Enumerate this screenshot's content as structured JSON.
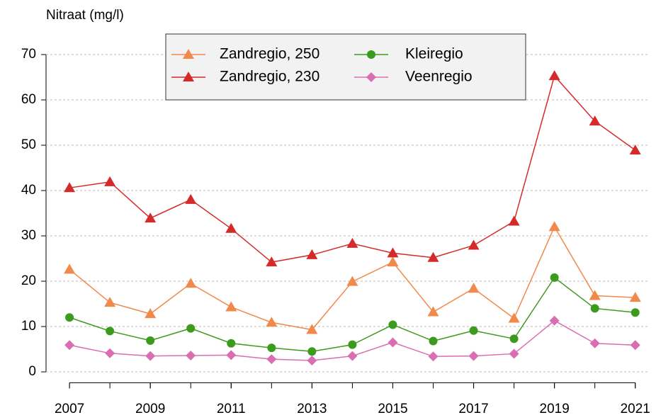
{
  "chart_data": {
    "type": "line",
    "y_label": "Nitraat (mg/l)",
    "x": [
      2007,
      2008,
      2009,
      2010,
      2011,
      2012,
      2013,
      2014,
      2015,
      2016,
      2017,
      2018,
      2019,
      2020,
      2021
    ],
    "series": [
      {
        "name": "Zandregio, 250",
        "color": "#f0894a",
        "marker": "triangle",
        "values": [
          22.6,
          15.3,
          12.8,
          19.5,
          14.3,
          10.9,
          9.3,
          19.9,
          24.2,
          13.2,
          18.4,
          11.8,
          32.0,
          16.8,
          16.4
        ]
      },
      {
        "name": "Zandregio, 230",
        "color": "#d42a2a",
        "marker": "triangle",
        "values": [
          40.6,
          41.9,
          33.9,
          38.0,
          31.6,
          24.2,
          25.8,
          28.3,
          26.2,
          25.2,
          27.9,
          33.2,
          65.3,
          55.3,
          48.9
        ]
      },
      {
        "name": "Kleiregio",
        "color": "#3c9a1c",
        "marker": "circle",
        "values": [
          12.0,
          9.0,
          6.9,
          9.6,
          6.3,
          5.3,
          4.5,
          6.0,
          10.4,
          6.8,
          9.1,
          7.3,
          20.8,
          14.0,
          13.1
        ]
      },
      {
        "name": "Veenregio",
        "color": "#d96fb2",
        "marker": "diamond",
        "values": [
          5.9,
          4.1,
          3.5,
          3.6,
          3.7,
          2.8,
          2.5,
          3.5,
          6.5,
          3.4,
          3.5,
          4.0,
          11.3,
          6.3,
          5.9
        ]
      }
    ],
    "xlim": [
      2006.42,
      2021.32
    ],
    "xticks": [
      2007,
      2009,
      2011,
      2013,
      2015,
      2017,
      2019,
      2021
    ],
    "ylim": [
      -2.4,
      72.8
    ],
    "yticks": [
      0,
      10,
      20,
      30,
      40,
      50,
      60,
      70
    ],
    "grid": true,
    "legend": "top"
  }
}
